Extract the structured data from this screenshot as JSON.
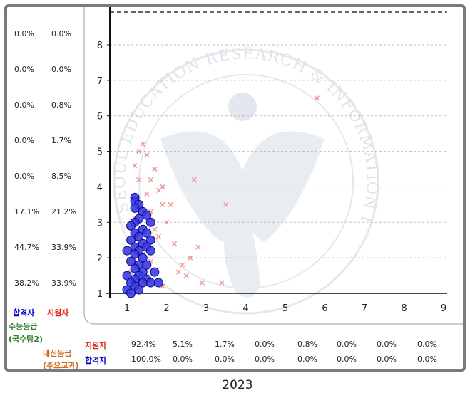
{
  "caption": "2023",
  "left_rows": [
    {
      "passer": "0.0%",
      "applicant": "0.0%"
    },
    {
      "passer": "0.0%",
      "applicant": "0.0%"
    },
    {
      "passer": "0.0%",
      "applicant": "0.8%"
    },
    {
      "passer": "0.0%",
      "applicant": "1.7%"
    },
    {
      "passer": "0.0%",
      "applicant": "8.5%"
    },
    {
      "passer": "17.1%",
      "applicant": "21.2%"
    },
    {
      "passer": "44.7%",
      "applicant": "33.9%"
    },
    {
      "passer": "38.2%",
      "applicant": "33.9%"
    }
  ],
  "legend": {
    "passer_label": "합격자",
    "applicant_label": "지원자",
    "y_axis_label_1": "수능등급",
    "y_axis_label_2": "(국수탐2)",
    "x_axis_label_1": "내신등급",
    "x_axis_label_2": "(주요교과)"
  },
  "bottom_rows": {
    "applicant_label": "지원자",
    "passer_label": "합격자",
    "applicant": [
      "92.4%",
      "5.1%",
      "1.7%",
      "0.0%",
      "0.8%",
      "0.0%",
      "0.0%",
      "0.0%"
    ],
    "passer": [
      "100.0%",
      "0.0%",
      "0.0%",
      "0.0%",
      "0.0%",
      "0.0%",
      "0.0%",
      "0.0%"
    ]
  },
  "watermark": "SEOUL EDUCATION RESEARCH & INFORMATION INSTITUTE",
  "colors": {
    "applicant": "#e0201a",
    "passer": "#0000cc",
    "passer_fill": "#3a3ae6",
    "applicant_marker": "#ef9a9a",
    "grid": "#bdbdbd",
    "frame": "#7a7a7a",
    "green_label": "#2e7d32",
    "orange_label": "#d2691e"
  },
  "chart_data": {
    "type": "scatter",
    "xlim": [
      1,
      9
    ],
    "ylim": [
      1,
      9
    ],
    "x_ticks": [
      "1",
      "2",
      "3",
      "4",
      "5",
      "6",
      "7",
      "8",
      "9"
    ],
    "y_ticks": [
      "1",
      "2",
      "3",
      "4",
      "5",
      "6",
      "7",
      "8"
    ],
    "grid": "horizontal dashed",
    "series": [
      {
        "name": "지원자",
        "marker": "x",
        "points": [
          [
            5.8,
            6.5
          ],
          [
            2.7,
            4.2
          ],
          [
            3.5,
            3.5
          ],
          [
            1.3,
            5.0
          ],
          [
            1.4,
            5.2
          ],
          [
            1.5,
            4.9
          ],
          [
            1.7,
            4.5
          ],
          [
            1.9,
            4.0
          ],
          [
            2.1,
            3.5
          ],
          [
            2.2,
            2.4
          ],
          [
            2.4,
            1.8
          ],
          [
            2.5,
            1.5
          ],
          [
            2.8,
            2.3
          ],
          [
            2.9,
            1.3
          ],
          [
            3.4,
            1.3
          ],
          [
            2.6,
            2.0
          ],
          [
            1.6,
            4.2
          ],
          [
            1.8,
            3.9
          ],
          [
            1.3,
            4.2
          ],
          [
            1.9,
            3.5
          ],
          [
            2.0,
            3.0
          ],
          [
            1.5,
            3.8
          ],
          [
            1.2,
            3.1
          ],
          [
            1.7,
            2.8
          ],
          [
            1.4,
            2.1
          ],
          [
            1.1,
            1.6
          ],
          [
            1.3,
            1.3
          ],
          [
            1.6,
            1.9
          ],
          [
            1.9,
            1.2
          ],
          [
            2.3,
            1.6
          ],
          [
            1.2,
            4.6
          ],
          [
            1.6,
            3.3
          ],
          [
            1.8,
            2.6
          ]
        ],
        "values_note": ""
      },
      {
        "name": "합격자",
        "marker": "circle",
        "points": [
          [
            1.2,
            3.7
          ],
          [
            1.2,
            3.6
          ],
          [
            1.3,
            3.5
          ],
          [
            1.2,
            3.4
          ],
          [
            1.4,
            3.3
          ],
          [
            1.5,
            3.2
          ],
          [
            1.3,
            3.1
          ],
          [
            1.2,
            3.0
          ],
          [
            1.6,
            3.0
          ],
          [
            1.1,
            2.9
          ],
          [
            1.4,
            2.8
          ],
          [
            1.2,
            2.7
          ],
          [
            1.5,
            2.7
          ],
          [
            1.3,
            2.6
          ],
          [
            1.6,
            2.5
          ],
          [
            1.1,
            2.5
          ],
          [
            1.4,
            2.4
          ],
          [
            1.2,
            2.3
          ],
          [
            1.5,
            2.3
          ],
          [
            1.3,
            2.2
          ],
          [
            1.0,
            2.2
          ],
          [
            1.6,
            2.2
          ],
          [
            1.2,
            2.1
          ],
          [
            1.4,
            2.0
          ],
          [
            1.1,
            1.9
          ],
          [
            1.3,
            1.8
          ],
          [
            1.5,
            1.8
          ],
          [
            1.2,
            1.7
          ],
          [
            1.4,
            1.6
          ],
          [
            1.0,
            1.5
          ],
          [
            1.3,
            1.5
          ],
          [
            1.2,
            1.4
          ],
          [
            1.5,
            1.4
          ],
          [
            1.1,
            1.3
          ],
          [
            1.4,
            1.3
          ],
          [
            1.6,
            1.3
          ],
          [
            1.2,
            1.2
          ],
          [
            1.0,
            1.1
          ],
          [
            1.3,
            1.1
          ],
          [
            1.1,
            1.0
          ],
          [
            1.8,
            1.3
          ],
          [
            1.7,
            1.6
          ]
        ]
      }
    ]
  }
}
